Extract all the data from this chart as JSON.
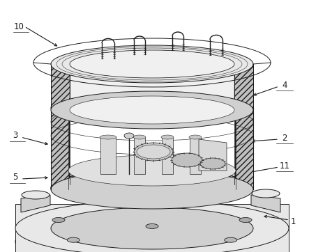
{
  "bg": "#ffffff",
  "lc": "#1a1a1a",
  "lw": 0.7,
  "gray_light": "#e8e8e8",
  "gray_mid": "#d0d0d0",
  "gray_dark": "#b8b8b8",
  "gray_hatch": "#c0c0c0",
  "labels": [
    [
      "10",
      27,
      38
    ],
    [
      "4",
      408,
      122
    ],
    [
      "3",
      22,
      195
    ],
    [
      "2",
      408,
      198
    ],
    [
      "11",
      408,
      238
    ],
    [
      "5",
      22,
      255
    ],
    [
      "1",
      420,
      318
    ]
  ],
  "leaders": [
    [
      [
        35,
        38
      ],
      [
        85,
        68
      ]
    ],
    [
      [
        400,
        124
      ],
      [
        360,
        138
      ]
    ],
    [
      [
        30,
        197
      ],
      [
        72,
        208
      ]
    ],
    [
      [
        400,
        200
      ],
      [
        358,
        203
      ]
    ],
    [
      [
        400,
        240
      ],
      [
        355,
        248
      ]
    ],
    [
      [
        30,
        257
      ],
      [
        72,
        255
      ]
    ],
    [
      [
        415,
        316
      ],
      [
        375,
        310
      ]
    ]
  ]
}
